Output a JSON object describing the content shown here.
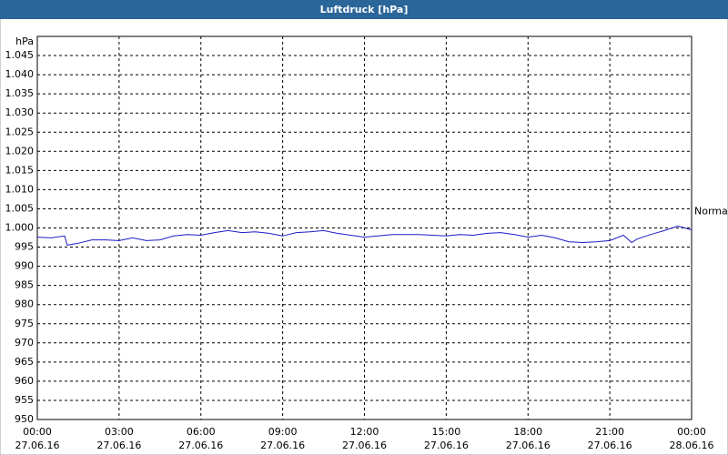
{
  "chart_data": {
    "type": "line",
    "title": "Luftdruck [hPa]",
    "y_label": "hPa",
    "x": [
      0,
      0.5,
      1,
      1.1,
      1.5,
      2,
      2.5,
      3,
      3.5,
      4,
      4.5,
      5,
      5.5,
      6,
      6.5,
      7,
      7.5,
      8,
      8.5,
      9,
      9.5,
      10,
      10.5,
      11,
      11.5,
      12,
      12.5,
      13,
      13.5,
      14,
      14.5,
      15,
      15.5,
      16,
      16.5,
      17,
      17.5,
      18,
      18.5,
      19,
      19.5,
      20,
      20.5,
      21,
      21.5,
      21.8,
      22,
      22.5,
      23,
      23.5,
      24
    ],
    "series": [
      {
        "name": "Normal",
        "color": "#1c1cc8",
        "values": [
          997.6,
          997.4,
          997.9,
          995.5,
          996.0,
          996.9,
          996.9,
          996.7,
          997.4,
          996.7,
          996.9,
          997.9,
          998.3,
          998.1,
          998.8,
          999.3,
          998.8,
          999.0,
          998.6,
          997.9,
          998.8,
          999.0,
          999.3,
          998.6,
          998.1,
          997.6,
          997.9,
          998.3,
          998.3,
          998.3,
          998.1,
          997.9,
          998.3,
          998.1,
          998.6,
          998.8,
          998.3,
          997.6,
          998.1,
          997.4,
          996.4,
          996.2,
          996.4,
          996.7,
          998.1,
          996.2,
          997.1,
          998.3,
          999.3,
          1000.5,
          999.5
        ]
      }
    ],
    "xlim": [
      0,
      24
    ],
    "xticks": [
      {
        "value": 0,
        "label": "00:00"
      },
      {
        "value": 3,
        "label": "03:00"
      },
      {
        "value": 6,
        "label": "06:00"
      },
      {
        "value": 9,
        "label": "09:00"
      },
      {
        "value": 12,
        "label": "12:00"
      },
      {
        "value": 15,
        "label": "15:00"
      },
      {
        "value": 18,
        "label": "18:00"
      },
      {
        "value": 21,
        "label": "21:00"
      },
      {
        "value": 24,
        "label": "00:00"
      }
    ],
    "xtick_dates": [
      "27.06.16",
      "27.06.16",
      "27.06.16",
      "27.06.16",
      "27.06.16",
      "27.06.16",
      "27.06.16",
      "27.06.16",
      "28.06.16"
    ],
    "ylim": [
      950,
      1050
    ],
    "yticks": [
      950,
      955,
      960,
      965,
      970,
      975,
      980,
      985,
      990,
      995,
      {
        "value": 1000,
        "label": "1.000"
      },
      {
        "value": 1005,
        "label": "1.005"
      },
      {
        "value": 1010,
        "label": "1.010"
      },
      {
        "value": 1015,
        "label": "1.015"
      },
      {
        "value": 1020,
        "label": "1.020"
      },
      {
        "value": 1025,
        "label": "1.025"
      },
      {
        "value": 1030,
        "label": "1.030"
      },
      {
        "value": 1035,
        "label": "1.035"
      },
      {
        "value": 1040,
        "label": "1.040"
      },
      {
        "value": 1045,
        "label": "1.045"
      }
    ],
    "grid": true
  }
}
